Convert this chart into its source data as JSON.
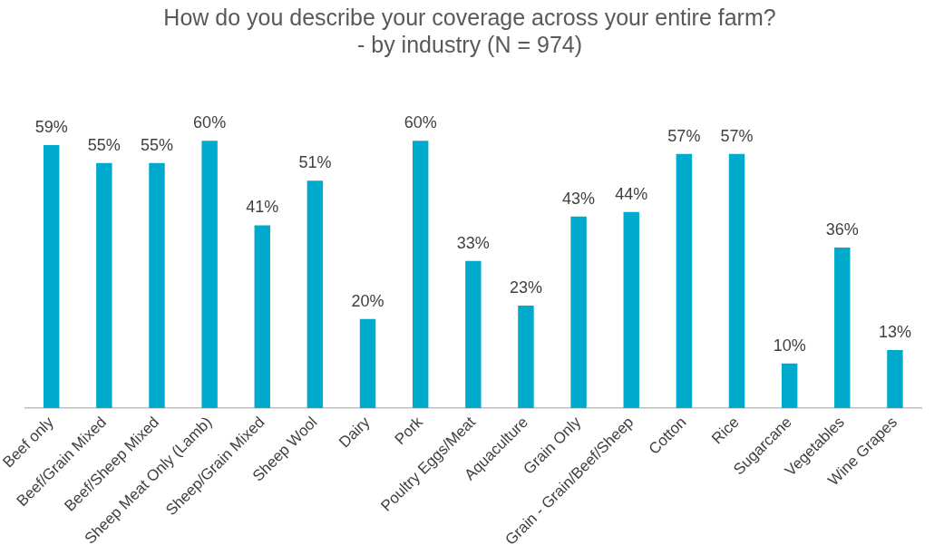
{
  "chart_data": {
    "type": "bar",
    "title": "How do you describe your coverage across your entire farm?\n- by industry (N = 974)",
    "categories": [
      "Beef only",
      "Beef/Grain Mixed",
      "Beef/Sheep Mixed",
      "Sheep Meat Only (Lamb)",
      "Sheep/Grain Mixed",
      "Sheep Wool",
      "Dairy",
      "Pork",
      "Poultry Eggs/Meat",
      "Aquaculture",
      "Grain Only",
      "Grain - Grain/Beef/Sheep",
      "Cotton",
      "Rice",
      "Sugarcane",
      "Vegetables",
      "Wine Grapes"
    ],
    "values": [
      59,
      55,
      55,
      60,
      41,
      51,
      20,
      60,
      33,
      23,
      43,
      44,
      57,
      57,
      10,
      36,
      13
    ],
    "value_labels": [
      "59%",
      "55%",
      "55%",
      "60%",
      "41%",
      "51%",
      "20%",
      "60%",
      "33%",
      "23%",
      "43%",
      "44%",
      "57%",
      "57%",
      "10%",
      "36%",
      "13%"
    ],
    "color": "#00aacc"
  }
}
